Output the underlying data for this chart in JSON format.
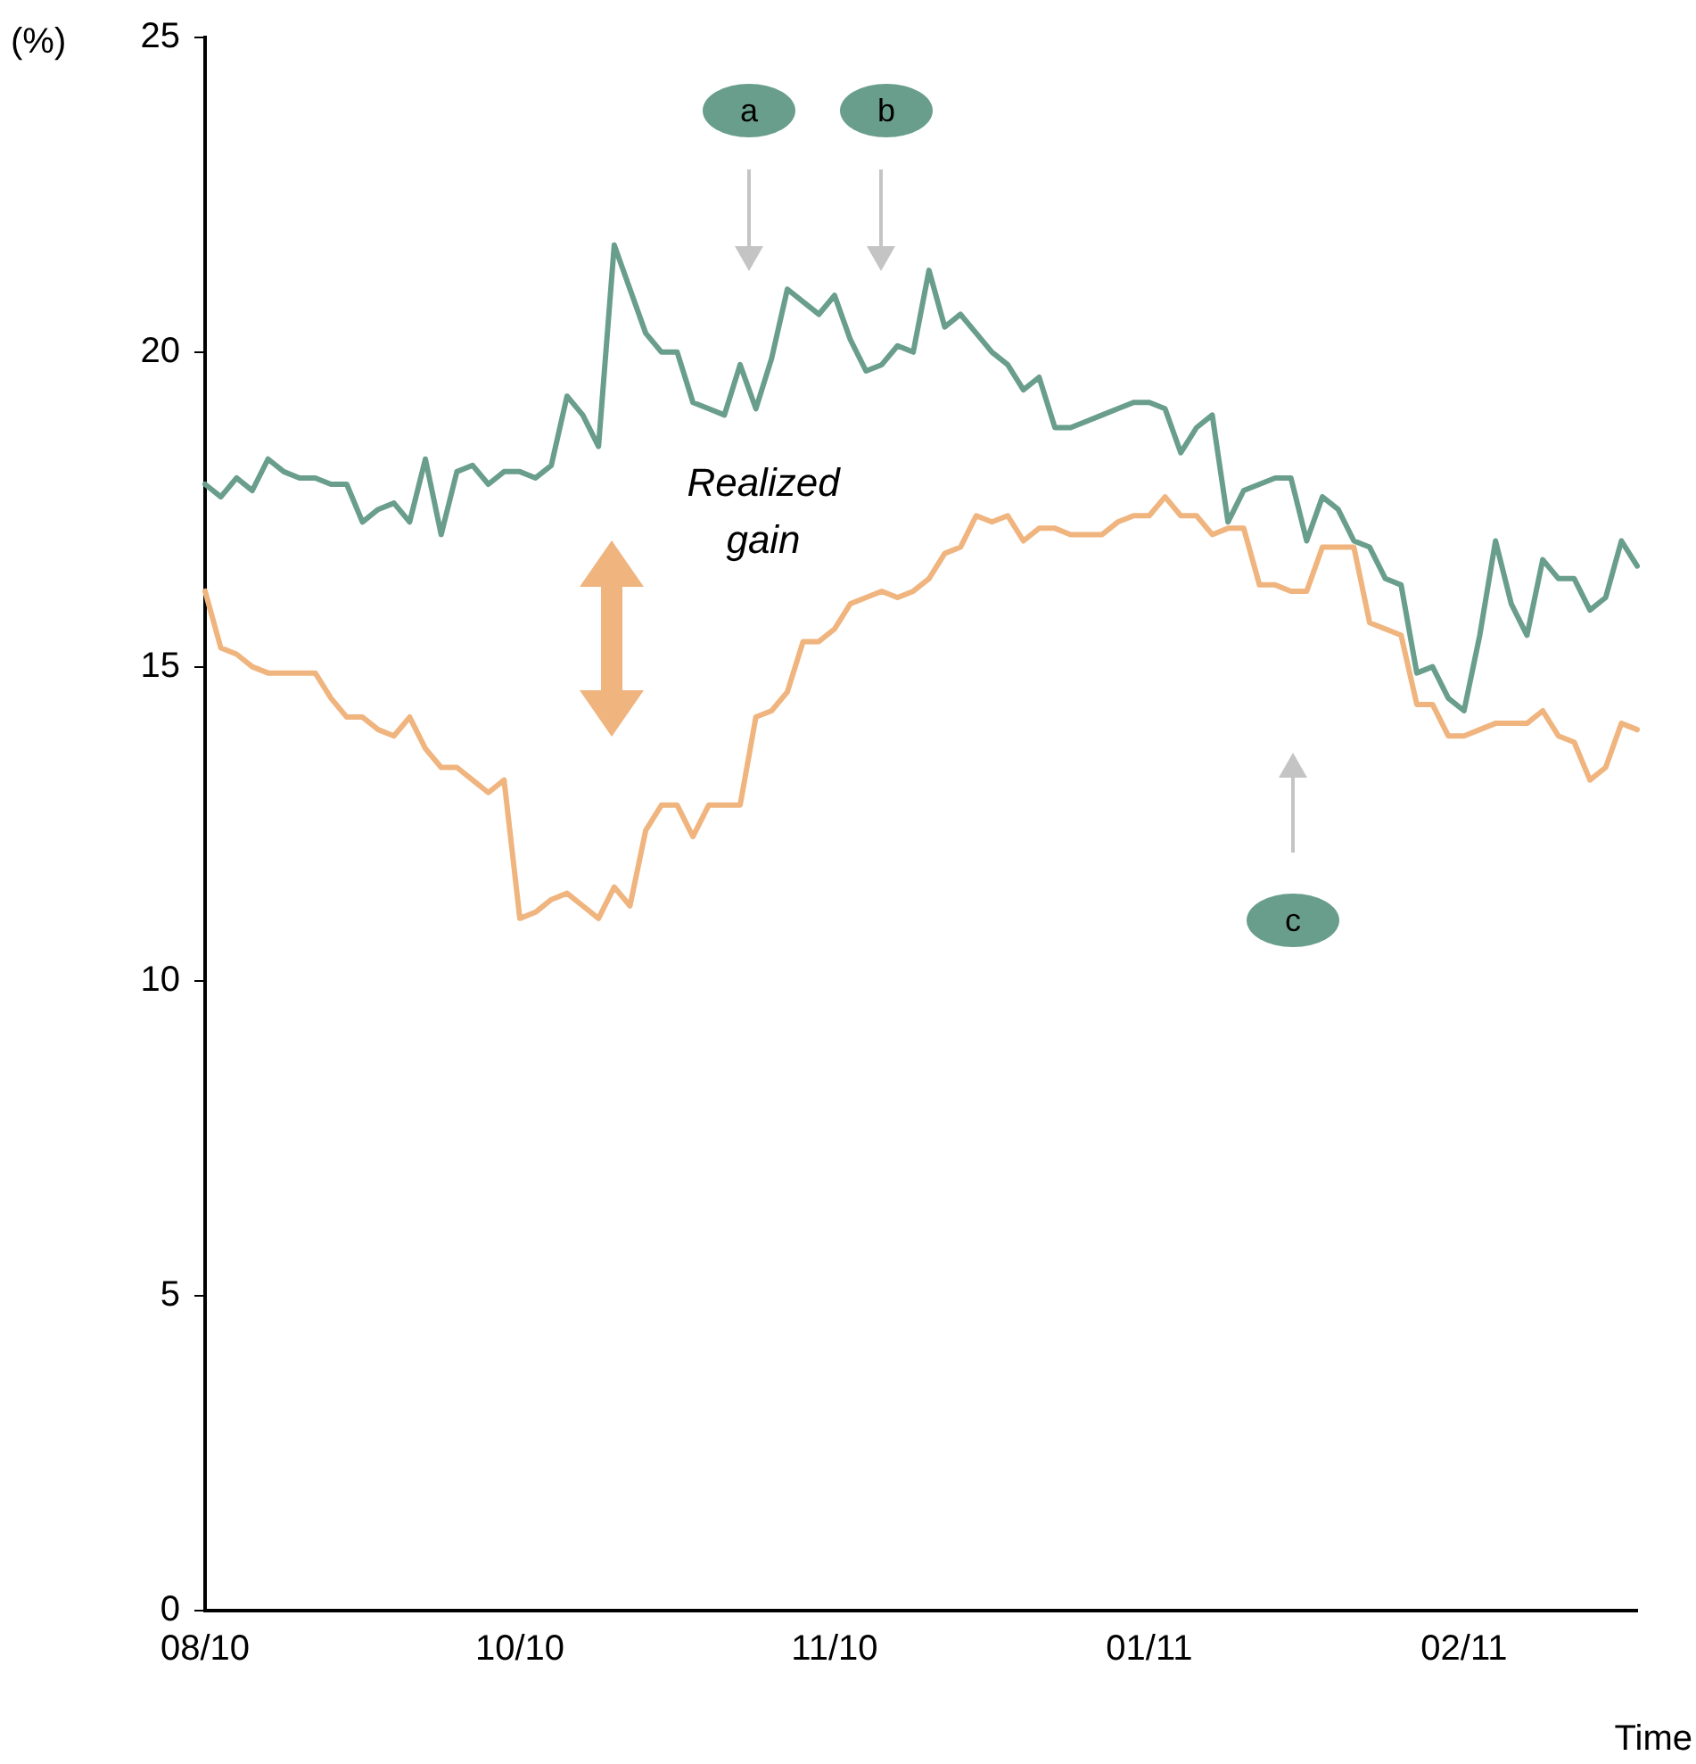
{
  "chart_data": {
    "type": "line",
    "xlabel": "Time",
    "ylabel": "(%)",
    "categories": [
      "08/10",
      null,
      null,
      null,
      null,
      null,
      null,
      null,
      null,
      null,
      null,
      null,
      null,
      null,
      null,
      null,
      null,
      null,
      null,
      null,
      "10/10",
      null,
      null,
      null,
      null,
      null,
      null,
      null,
      null,
      null,
      null,
      null,
      null,
      null,
      null,
      null,
      null,
      null,
      null,
      null,
      "11/10",
      null,
      null,
      null,
      null,
      null,
      null,
      null,
      null,
      null,
      null,
      null,
      null,
      null,
      null,
      null,
      null,
      null,
      null,
      null,
      "01/11",
      null,
      null,
      null,
      null,
      null,
      null,
      null,
      null,
      null,
      null,
      null,
      null,
      null,
      null,
      null,
      null,
      null,
      null,
      null,
      "02/11",
      null,
      null,
      null,
      null,
      null,
      null,
      null,
      null,
      null,
      null,
      null
    ],
    "ylim": [
      0,
      25
    ],
    "yticks": [
      0,
      5,
      10,
      15,
      20,
      25
    ],
    "grid": false,
    "legend": false,
    "marker": "none",
    "line_style": "solid",
    "series": [
      {
        "color": "#6a9e8c",
        "values": [
          17.9,
          17.7,
          18.0,
          17.8,
          18.3,
          18.1,
          18.0,
          18.0,
          17.9,
          17.9,
          17.3,
          17.5,
          17.6,
          17.3,
          18.3,
          17.1,
          18.1,
          18.2,
          17.9,
          18.1,
          18.1,
          18.0,
          18.2,
          19.3,
          19.0,
          18.5,
          21.7,
          21.0,
          20.3,
          20.0,
          20.0,
          19.2,
          19.1,
          19.0,
          19.8,
          19.1,
          19.9,
          21.0,
          20.8,
          20.6,
          20.9,
          20.2,
          19.7,
          19.8,
          20.1,
          20.0,
          21.3,
          20.4,
          20.6,
          20.3,
          20.0,
          19.8,
          19.4,
          19.6,
          18.8,
          18.8,
          18.9,
          19.0,
          19.1,
          19.2,
          19.2,
          19.1,
          18.4,
          18.8,
          19.0,
          17.3,
          17.8,
          17.9,
          18.0,
          18.0,
          17.0,
          17.7,
          17.5,
          17.0,
          16.9,
          16.4,
          16.3,
          14.9,
          15.0,
          14.5,
          14.3,
          15.5,
          17.0,
          16.0,
          15.5,
          16.7,
          16.4,
          16.4,
          15.9,
          16.1,
          17.0,
          16.6
        ]
      },
      {
        "color": "#f0b47e",
        "values": [
          16.2,
          15.3,
          15.2,
          15.0,
          14.9,
          14.9,
          14.9,
          14.9,
          14.5,
          14.2,
          14.2,
          14.0,
          13.9,
          14.2,
          13.7,
          13.4,
          13.4,
          13.2,
          13.0,
          13.2,
          11.0,
          11.1,
          11.3,
          11.4,
          11.2,
          11.0,
          11.5,
          11.2,
          12.4,
          12.8,
          12.8,
          12.3,
          12.8,
          12.8,
          12.8,
          14.2,
          14.3,
          14.6,
          15.4,
          15.4,
          15.6,
          16.0,
          16.1,
          16.2,
          16.1,
          16.2,
          16.4,
          16.8,
          16.9,
          17.4,
          17.3,
          17.4,
          17.0,
          17.2,
          17.2,
          17.1,
          17.1,
          17.1,
          17.3,
          17.4,
          17.4,
          17.7,
          17.4,
          17.4,
          17.1,
          17.2,
          17.2,
          16.3,
          16.3,
          16.2,
          16.2,
          16.9,
          16.9,
          16.9,
          15.7,
          15.6,
          15.5,
          14.4,
          14.4,
          13.9,
          13.9,
          14.0,
          14.1,
          14.1,
          14.1,
          14.3,
          13.9,
          13.8,
          13.2,
          13.4,
          14.1,
          14.0
        ]
      }
    ],
    "annotations": [
      "Realized gain",
      "a",
      "b",
      "c"
    ]
  }
}
